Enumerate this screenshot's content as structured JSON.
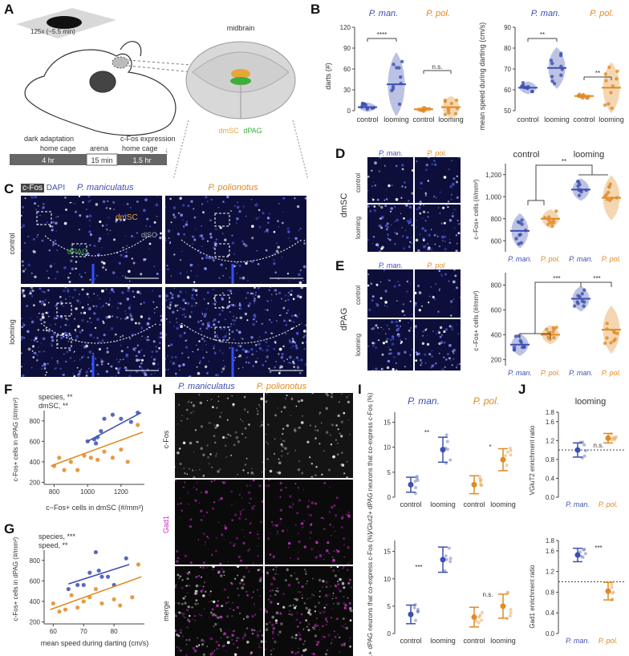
{
  "labels": {
    "A": "A",
    "B": "B",
    "C": "C",
    "D": "D",
    "E": "E",
    "F": "F",
    "G": "G",
    "H": "H",
    "I": "I",
    "J": "J"
  },
  "colors": {
    "pman": "#3d4fb0",
    "ppol": "#e08a24",
    "dmSC": "#e8a53a",
    "dPAG": "#3cae3c",
    "magenta": "#c02cc0",
    "bg_dark": "#0d0f3a"
  },
  "panelA": {
    "magnification": "125x (~5.5 min)",
    "midbrain": "midbrain",
    "dmSC": "dmSC",
    "dPAG": "dPAG",
    "timeline": {
      "dark_adaptation": "dark adaptation",
      "cfos_expression": "c-Fos expression",
      "segments": [
        {
          "label": "home cage",
          "value": "4 hr"
        },
        {
          "label": "arena",
          "value": "15 min"
        },
        {
          "label": "home cage",
          "value": "1.5 hr"
        }
      ]
    }
  },
  "panelB": {
    "left": {
      "species": [
        "P. man.",
        "P. pol."
      ],
      "ylabel": "darts (#)",
      "yticks": [
        "0",
        "30",
        "60",
        "90",
        "120"
      ],
      "ylim": [
        0,
        120
      ],
      "groups": [
        "control",
        "looming",
        "control",
        "looming"
      ],
      "sig": [
        "****",
        "n.s."
      ],
      "medians": [
        5,
        38,
        2,
        5
      ]
    },
    "right": {
      "species": [
        "P. man.",
        "P. pol."
      ],
      "ylabel": "mean speed during darting (cm/s)",
      "yticks": [
        "50",
        "60",
        "70",
        "80",
        "90"
      ],
      "ylim": [
        50,
        90
      ],
      "groups": [
        "control",
        "looming",
        "control",
        "looming"
      ],
      "sig": [
        "**",
        "**"
      ],
      "medians": [
        61,
        70.5,
        57,
        61
      ]
    }
  },
  "panelC": {
    "stain": "c-Fos",
    "dapi": "DAPI",
    "species": [
      "P. maniculatus",
      "P. polionotus"
    ],
    "rows": [
      "control",
      "looming"
    ],
    "region_labels": [
      "dmSC",
      "dlSC",
      "dPAG"
    ]
  },
  "panelD": {
    "species": [
      "P. man.",
      "P. pol."
    ],
    "rows": [
      "control",
      "looming"
    ],
    "region": "dmSC",
    "conditions": [
      "control",
      "looming"
    ],
    "ylabel": "c−Fos+ cells (#/mm²)",
    "yticks": [
      "600",
      "800",
      "1,000",
      "1,200"
    ],
    "ylim": [
      500,
      1300
    ],
    "sig": "**",
    "xgroups": [
      "P. man.",
      "P. pol.",
      "P. man.",
      "P. pol."
    ],
    "medians": [
      690,
      800,
      1065,
      990
    ]
  },
  "panelE": {
    "species": [
      "P. man.",
      "P. pol"
    ],
    "rows": [
      "control",
      "looming"
    ],
    "region": "dPAG",
    "ylabel": "c−Fos+ cells (#/mm²)",
    "yticks": [
      "200",
      "400",
      "600",
      "800"
    ],
    "ylim": [
      150,
      900
    ],
    "sig": [
      "***",
      "***"
    ],
    "xgroups": [
      "P. man.",
      "P. pol.",
      "P. man.",
      "P. pol."
    ],
    "medians": [
      320,
      400,
      690,
      440
    ]
  },
  "panelF": {
    "annot": [
      "species, **",
      "dmSC, **"
    ],
    "ylabel": "c-Fos+ cells in dPAG (#/mm²)",
    "xlabel": "c−Fos+ cells in dmSC (#/mm²)",
    "xticks": [
      "800",
      "1000",
      "1200"
    ],
    "yticks": [
      "200",
      "400",
      "600",
      "800"
    ],
    "xlim": [
      740,
      1340
    ],
    "ylim": [
      180,
      900
    ]
  },
  "panelG": {
    "annot": [
      "species, ***",
      "speed, **"
    ],
    "ylabel": "c-Fos+ cells in dPAG (#/mm²)",
    "xlabel": "mean speed during darting (cm/s)",
    "xticks": [
      "60",
      "70",
      "80"
    ],
    "yticks": [
      "200",
      "400",
      "600",
      "800"
    ],
    "xlim": [
      57,
      90
    ],
    "ylim": [
      180,
      900
    ]
  },
  "panelH": {
    "species": [
      "P. maniculatus",
      "P. polionotus"
    ],
    "rows": [
      "c-Fos",
      "Gad1",
      "merge"
    ]
  },
  "panelI": {
    "species": [
      "P. man.",
      "P. pol."
    ],
    "top": {
      "ylabel": "VGlut2+ dPAG neurons that co-express c-Fos (%)",
      "yticks": [
        "0",
        "5",
        "10",
        "15"
      ],
      "ylim": [
        0,
        17
      ],
      "groups": [
        "control",
        "looming",
        "control",
        "looming"
      ],
      "sig": [
        "**",
        "*"
      ],
      "means": [
        2.5,
        9.5,
        2.5,
        7.5
      ],
      "errs": [
        1.5,
        2.5,
        1.8,
        2.2
      ]
    },
    "bottom": {
      "ylabel": "Gad1+ dPAG neurons that co-express c-Fos (%)",
      "yticks": [
        "0",
        "5",
        "10",
        "15"
      ],
      "ylim": [
        0,
        17
      ],
      "groups": [
        "control",
        "looming",
        "control",
        "looming"
      ],
      "sig": [
        "***",
        "n.s."
      ],
      "means": [
        3.5,
        13.5,
        3.0,
        5.0
      ],
      "errs": [
        1.7,
        2.3,
        1.8,
        2.2
      ]
    }
  },
  "panelJ": {
    "title": "looming",
    "top": {
      "ylabel": "VGluT2 enrichment ratio",
      "yticks": [
        "0.0",
        "0.2",
        "0.4",
        "0.6",
        "0.8",
        "1.0",
        "1.2",
        "1.4",
        "1.6",
        "1.8"
      ],
      "ylim": [
        0,
        1.8
      ],
      "groups": [
        "P. man.",
        "P. pol."
      ],
      "sig": "n.s.",
      "means": [
        1.0,
        1.25
      ],
      "errs": [
        0.15,
        0.1
      ]
    },
    "bottom": {
      "ylabel": "Gad1 enrichment ratio",
      "yticks": [
        "0.0",
        "0.2",
        "0.4",
        "0.6",
        "0.8",
        "1.0",
        "1.2",
        "1.4",
        "1.6",
        "1.8"
      ],
      "ylim": [
        0,
        1.8
      ],
      "groups": [
        "P. man.",
        "P. pol."
      ],
      "sig": "***",
      "means": [
        1.52,
        0.82
      ],
      "errs": [
        0.13,
        0.17
      ]
    }
  }
}
